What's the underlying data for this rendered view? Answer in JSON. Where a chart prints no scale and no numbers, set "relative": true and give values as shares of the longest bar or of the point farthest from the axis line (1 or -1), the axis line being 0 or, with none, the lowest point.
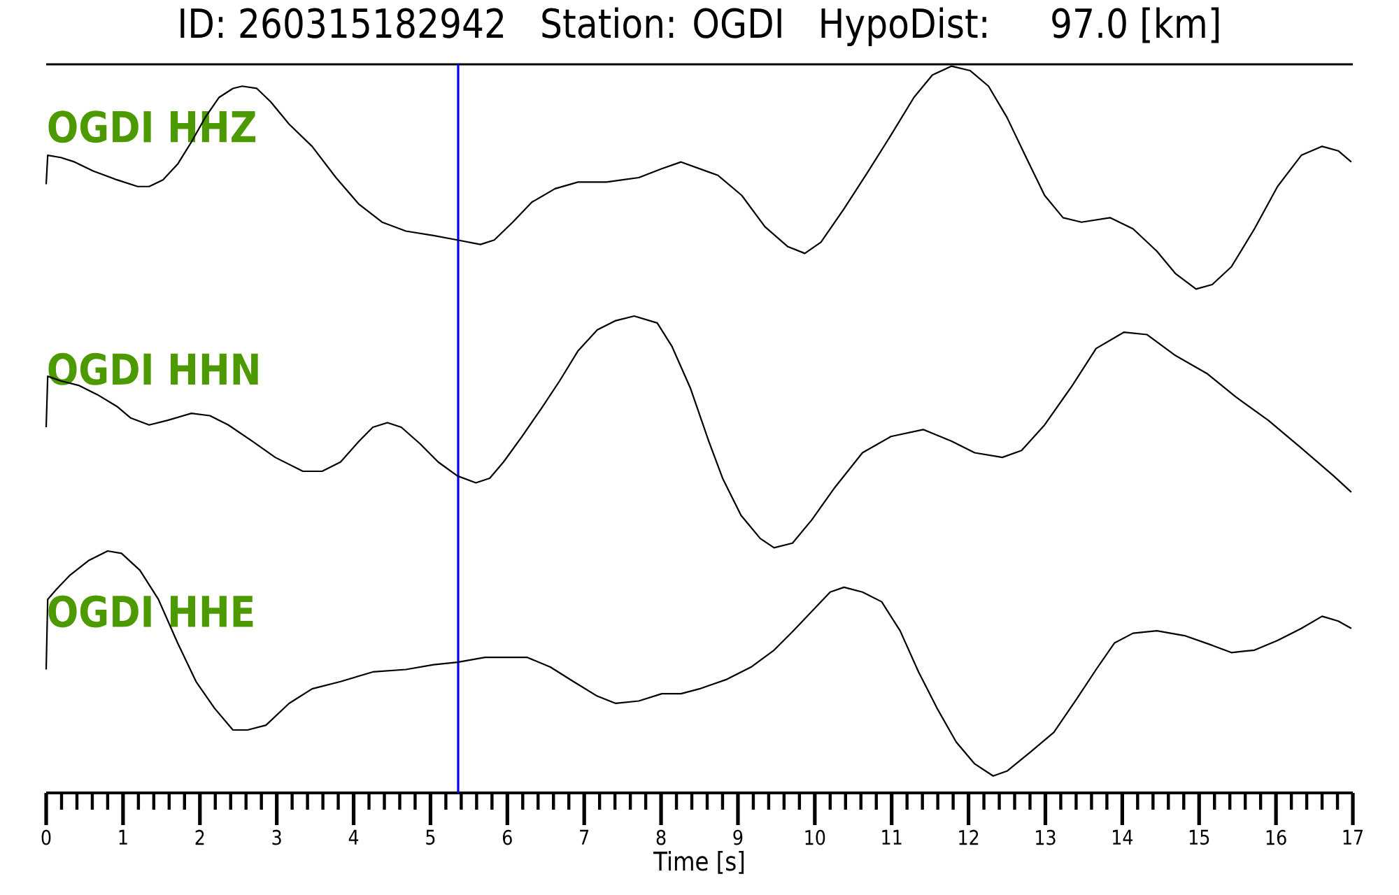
{
  "chart_data": [
    {
      "type": "line",
      "title": "ID: 260315182942   Station: OGDI   HypoDist:    97.0 [km]",
      "relative": true,
      "xlim": [
        0,
        17
      ],
      "tick_labels": false,
      "ref_lines": [
        {
          "axis": "x",
          "value": 5.36,
          "color": "#0000ff"
        }
      ],
      "series": [
        {
          "name": "OGDI HHZ",
          "color": "#000000",
          "x": [
            0,
            0.02,
            0.19,
            0.37,
            0.61,
            0.92,
            1.19,
            1.34,
            1.52,
            1.71,
            1.89,
            2.07,
            2.25,
            2.43,
            2.55,
            2.74,
            2.92,
            3.16,
            3.46,
            3.77,
            4.07,
            4.37,
            4.68,
            5.04,
            5.35,
            5.65,
            5.83,
            6.07,
            6.32,
            6.62,
            6.92,
            7.29,
            7.71,
            8.01,
            8.26,
            8.74,
            9.05,
            9.35,
            9.65,
            9.87,
            10.08,
            10.38,
            10.68,
            10.99,
            11.29,
            11.53,
            11.78,
            12.02,
            12.26,
            12.5,
            12.75,
            12.99,
            13.23,
            13.47,
            13.84,
            14.14,
            14.45,
            14.69,
            14.96,
            15.17,
            15.42,
            15.72,
            16.02,
            16.33,
            16.6,
            16.81,
            16.98
          ],
          "values": [
            0.47,
            0.6,
            0.59,
            0.57,
            0.53,
            0.49,
            0.46,
            0.46,
            0.49,
            0.56,
            0.66,
            0.77,
            0.86,
            0.9,
            0.91,
            0.9,
            0.84,
            0.74,
            0.64,
            0.5,
            0.38,
            0.3,
            0.26,
            0.24,
            0.22,
            0.2,
            0.22,
            0.3,
            0.39,
            0.45,
            0.48,
            0.48,
            0.5,
            0.54,
            0.57,
            0.51,
            0.42,
            0.28,
            0.19,
            0.16,
            0.21,
            0.36,
            0.52,
            0.69,
            0.86,
            0.96,
            1,
            0.98,
            0.91,
            0.77,
            0.59,
            0.42,
            0.32,
            0.3,
            0.32,
            0.27,
            0.17,
            0.07,
            0,
            0.02,
            0.1,
            0.27,
            0.46,
            0.6,
            0.64,
            0.62,
            0.57
          ]
        }
      ]
    },
    {
      "type": "line",
      "relative": true,
      "xlim": [
        0,
        17
      ],
      "tick_labels": false,
      "ref_lines": [
        {
          "axis": "x",
          "value": 5.36,
          "color": "#0000ff"
        }
      ],
      "series": [
        {
          "name": "OGDI HHN",
          "color": "#000000",
          "x": [
            0,
            0.02,
            0.19,
            0.43,
            0.67,
            0.92,
            1.1,
            1.34,
            1.58,
            1.89,
            2.13,
            2.37,
            2.68,
            2.98,
            3.34,
            3.59,
            3.83,
            4.07,
            4.25,
            4.44,
            4.62,
            4.86,
            5.1,
            5.35,
            5.59,
            5.77,
            5.95,
            6.19,
            6.44,
            6.68,
            6.92,
            7.17,
            7.41,
            7.65,
            7.95,
            8.14,
            8.38,
            8.62,
            8.8,
            9.04,
            9.29,
            9.47,
            9.71,
            9.96,
            10.26,
            10.62,
            10.99,
            11.41,
            11.78,
            12.08,
            12.44,
            12.69,
            12.99,
            13.35,
            13.66,
            14.02,
            14.32,
            14.69,
            15.11,
            15.48,
            15.9,
            16.33,
            16.75,
            16.98
          ],
          "values": [
            0.52,
            0.74,
            0.72,
            0.7,
            0.66,
            0.61,
            0.56,
            0.53,
            0.55,
            0.58,
            0.57,
            0.53,
            0.46,
            0.39,
            0.33,
            0.33,
            0.37,
            0.46,
            0.52,
            0.54,
            0.52,
            0.45,
            0.37,
            0.31,
            0.28,
            0.3,
            0.37,
            0.48,
            0.6,
            0.72,
            0.85,
            0.94,
            0.98,
            1,
            0.97,
            0.87,
            0.69,
            0.46,
            0.3,
            0.14,
            0.04,
            0,
            0.02,
            0.12,
            0.26,
            0.41,
            0.48,
            0.51,
            0.46,
            0.41,
            0.39,
            0.42,
            0.53,
            0.7,
            0.86,
            0.93,
            0.92,
            0.83,
            0.75,
            0.65,
            0.55,
            0.43,
            0.31,
            0.24
          ]
        }
      ]
    },
    {
      "type": "line",
      "xlabel": "Time [s]",
      "relative": true,
      "xlim": [
        0,
        17
      ],
      "tick_labels": "x",
      "ref_lines": [
        {
          "axis": "x",
          "value": 5.36,
          "color": "#0000ff"
        }
      ],
      "xticks": [
        0,
        {
          "value": 0.2,
          "label": null
        },
        {
          "value": 0.4,
          "label": null
        },
        {
          "value": 0.6,
          "label": null
        },
        {
          "value": 0.8,
          "label": null
        },
        1,
        {
          "value": 1.2,
          "label": null
        },
        {
          "value": 1.4,
          "label": null
        },
        {
          "value": 1.6,
          "label": null
        },
        {
          "value": 1.8,
          "label": null
        },
        2,
        {
          "value": 2.2,
          "label": null
        },
        {
          "value": 2.4,
          "label": null
        },
        {
          "value": 2.6,
          "label": null
        },
        {
          "value": 2.8,
          "label": null
        },
        3,
        {
          "value": 3.2,
          "label": null
        },
        {
          "value": 3.4,
          "label": null
        },
        {
          "value": 3.6,
          "label": null
        },
        {
          "value": 3.8,
          "label": null
        },
        4,
        {
          "value": 4.2,
          "label": null
        },
        {
          "value": 4.4,
          "label": null
        },
        {
          "value": 4.6,
          "label": null
        },
        {
          "value": 4.8,
          "label": null
        },
        5,
        {
          "value": 5.2,
          "label": null
        },
        {
          "value": 5.4,
          "label": null
        },
        {
          "value": 5.6,
          "label": null
        },
        {
          "value": 5.8,
          "label": null
        },
        6,
        {
          "value": 6.2,
          "label": null
        },
        {
          "value": 6.4,
          "label": null
        },
        {
          "value": 6.6,
          "label": null
        },
        {
          "value": 6.8,
          "label": null
        },
        7,
        {
          "value": 7.2,
          "label": null
        },
        {
          "value": 7.4,
          "label": null
        },
        {
          "value": 7.6,
          "label": null
        },
        {
          "value": 7.8,
          "label": null
        },
        8,
        {
          "value": 8.2,
          "label": null
        },
        {
          "value": 8.4,
          "label": null
        },
        {
          "value": 8.6,
          "label": null
        },
        {
          "value": 8.8,
          "label": null
        },
        9,
        {
          "value": 9.2,
          "label": null
        },
        {
          "value": 9.4,
          "label": null
        },
        {
          "value": 9.6,
          "label": null
        },
        {
          "value": 9.8,
          "label": null
        },
        10,
        {
          "value": 10.2,
          "label": null
        },
        {
          "value": 10.4,
          "label": null
        },
        {
          "value": 10.6,
          "label": null
        },
        {
          "value": 10.8,
          "label": null
        },
        11,
        {
          "value": 11.2,
          "label": null
        },
        {
          "value": 11.4,
          "label": null
        },
        {
          "value": 11.6,
          "label": null
        },
        {
          "value": 11.8,
          "label": null
        },
        12,
        {
          "value": 12.2,
          "label": null
        },
        {
          "value": 12.4,
          "label": null
        },
        {
          "value": 12.6,
          "label": null
        },
        {
          "value": 12.8,
          "label": null
        },
        13,
        {
          "value": 13.2,
          "label": null
        },
        {
          "value": 13.4,
          "label": null
        },
        {
          "value": 13.6,
          "label": null
        },
        {
          "value": 13.8,
          "label": null
        },
        14,
        {
          "value": 14.2,
          "label": null
        },
        {
          "value": 14.4,
          "label": null
        },
        {
          "value": 14.6,
          "label": null
        },
        {
          "value": 14.8,
          "label": null
        },
        15,
        {
          "value": 15.2,
          "label": null
        },
        {
          "value": 15.4,
          "label": null
        },
        {
          "value": 15.6,
          "label": null
        },
        {
          "value": 15.8,
          "label": null
        },
        16,
        {
          "value": 16.2,
          "label": null
        },
        {
          "value": 16.4,
          "label": null
        },
        {
          "value": 16.6,
          "label": null
        },
        {
          "value": 16.8,
          "label": null
        },
        17
      ],
      "series": [
        {
          "name": "OGDI HHE",
          "color": "#000000",
          "x": [
            0,
            0.02,
            0.13,
            0.31,
            0.55,
            0.8,
            0.98,
            1.22,
            1.46,
            1.71,
            1.95,
            2.19,
            2.43,
            2.62,
            2.86,
            3.16,
            3.46,
            3.83,
            4.25,
            4.68,
            5.04,
            5.35,
            5.71,
            5.95,
            6.26,
            6.56,
            6.86,
            7.17,
            7.41,
            7.71,
            8.01,
            8.26,
            8.5,
            8.86,
            9.17,
            9.47,
            9.72,
            9.96,
            10.2,
            10.38,
            10.62,
            10.87,
            11.11,
            11.35,
            11.59,
            11.84,
            12.08,
            12.32,
            12.5,
            12.81,
            13.11,
            13.41,
            13.66,
            13.9,
            14.14,
            14.45,
            14.81,
            15.17,
            15.42,
            15.72,
            16.02,
            16.33,
            16.6,
            16.81,
            16.98
          ],
          "values": [
            0.51,
            0.8,
            0.84,
            0.9,
            0.96,
            1,
            0.99,
            0.92,
            0.8,
            0.62,
            0.46,
            0.35,
            0.26,
            0.26,
            0.28,
            0.37,
            0.43,
            0.46,
            0.5,
            0.51,
            0.53,
            0.54,
            0.56,
            0.56,
            0.56,
            0.52,
            0.46,
            0.4,
            0.37,
            0.38,
            0.41,
            0.41,
            0.43,
            0.47,
            0.52,
            0.59,
            0.67,
            0.75,
            0.83,
            0.85,
            0.83,
            0.79,
            0.67,
            0.5,
            0.35,
            0.21,
            0.12,
            0.07,
            0.09,
            0.17,
            0.25,
            0.39,
            0.51,
            0.62,
            0.66,
            0.67,
            0.65,
            0.61,
            0.58,
            0.59,
            0.63,
            0.68,
            0.73,
            0.71,
            0.68
          ]
        }
      ]
    }
  ]
}
